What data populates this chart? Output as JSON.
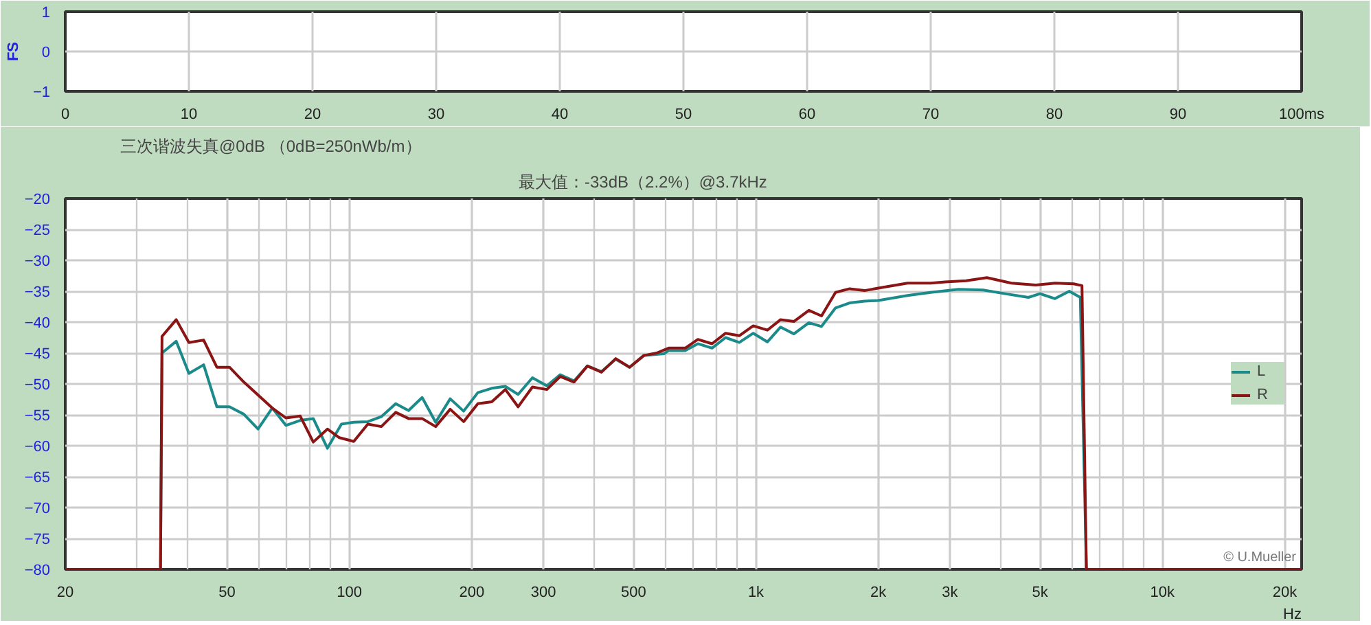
{
  "chart_data": [
    {
      "type": "line",
      "ylabel": "FS",
      "xlim": [
        0,
        100
      ],
      "xticks": [
        0,
        10,
        20,
        30,
        40,
        50,
        60,
        70,
        80,
        90,
        {
          "value": 100,
          "label": "100ms"
        }
      ],
      "ylim": [
        -1,
        1
      ],
      "yticks": [
        -1,
        0,
        1
      ],
      "grid": true
    },
    {
      "type": "line",
      "title": "三次谐波失真@0dB （0dB=250nWb/m）",
      "annotations": [
        "最大值：-33dB（2.2%）@3.7kHz",
        "© U.Mueller"
      ],
      "log": "x",
      "xlim": [
        20,
        22000
      ],
      "xticks": [
        20,
        50,
        100,
        200,
        300,
        500,
        {
          "value": 1000,
          "label": "1k"
        },
        {
          "value": 2000,
          "label": "2k"
        },
        {
          "value": 3000,
          "label": "3k"
        },
        {
          "value": 5000,
          "label": "5k"
        },
        {
          "value": 10000,
          "label": "10k"
        },
        {
          "value": 20000,
          "label": "20k"
        }
      ],
      "xlabel": "Hz",
      "ylim": [
        -80,
        -20
      ],
      "yticks": [
        -80,
        -75,
        -70,
        -65,
        -60,
        -55,
        -50,
        -45,
        -40,
        -35,
        -30,
        -25,
        -20
      ],
      "grid": true,
      "legend": "right",
      "line_style": "solid",
      "series": [
        {
          "name": "L",
          "color": "#1a8a8a",
          "x": [
            20,
            34.3,
            34.6,
            37.5,
            40.3,
            43.8,
            47.2,
            50.7,
            55,
            59.6,
            64.6,
            69.8,
            75.7,
            81.5,
            88.3,
            95.6,
            102.5,
            111,
            119.8,
            130,
            139.8,
            151,
            163,
            177,
            191,
            207,
            224,
            242,
            260,
            282,
            306,
            330,
            357,
            385,
            417,
            452,
            489,
            530,
            595,
            610,
            670,
            720,
            780,
            842,
            910,
            985,
            1067,
            1150,
            1240,
            1350,
            1450,
            1570,
            1700,
            1850,
            2000,
            2360,
            2690,
            3150,
            3620,
            4100,
            4680,
            5000,
            5440,
            5900,
            6280,
            6500,
            22000
          ],
          "values": [
            -80,
            -80,
            -45.0,
            -43.1,
            -48.3,
            -46.9,
            -53.7,
            -53.7,
            -54.9,
            -57.3,
            -53.9,
            -56.7,
            -55.9,
            -55.6,
            -60.4,
            -56.5,
            -56.2,
            -56.1,
            -55.3,
            -53.2,
            -54.3,
            -52.2,
            -56.2,
            -52.4,
            -54.4,
            -51.4,
            -50.7,
            -50.4,
            -51.7,
            -49.0,
            -50.3,
            -48.5,
            -49.5,
            -47.1,
            -48.0,
            -46.0,
            -47.3,
            -45.4,
            -45.1,
            -44.6,
            -44.6,
            -43.5,
            -44.2,
            -42.5,
            -43.3,
            -41.8,
            -43.2,
            -40.8,
            -41.9,
            -40.1,
            -40.7,
            -37.7,
            -36.9,
            -36.6,
            -36.5,
            -35.7,
            -35.2,
            -34.7,
            -34.8,
            -35.4,
            -36.0,
            -35.4,
            -36.2,
            -35.0,
            -36.0,
            -80,
            -80
          ]
        },
        {
          "name": "R",
          "color": "#8b1414",
          "x": [
            20,
            34.3,
            34.6,
            37.5,
            40.3,
            43.8,
            47.2,
            50.7,
            55,
            64.6,
            69.8,
            75.7,
            81.5,
            88.3,
            94.5,
            102.5,
            111,
            119.8,
            130,
            139.8,
            151,
            163,
            177,
            191,
            207,
            224,
            242,
            260,
            282,
            306,
            330,
            357,
            385,
            417,
            452,
            489,
            530,
            570,
            610,
            670,
            720,
            780,
            842,
            910,
            985,
            1067,
            1150,
            1240,
            1350,
            1450,
            1570,
            1700,
            1850,
            2000,
            2360,
            2690,
            2920,
            3290,
            3700,
            4250,
            4880,
            5440,
            6050,
            6340,
            6500,
            22000
          ],
          "values": [
            -80,
            -80,
            -42.3,
            -39.6,
            -43.3,
            -42.9,
            -47.3,
            -47.3,
            -49.7,
            -53.9,
            -55.5,
            -55.2,
            -59.4,
            -57.3,
            -58.7,
            -59.3,
            -56.5,
            -56.9,
            -54.6,
            -55.6,
            -55.6,
            -56.9,
            -54.1,
            -56.1,
            -53.2,
            -52.9,
            -50.9,
            -53.7,
            -50.5,
            -50.9,
            -48.8,
            -49.7,
            -47.1,
            -48.1,
            -45.9,
            -47.3,
            -45.4,
            -45.0,
            -44.2,
            -44.2,
            -42.8,
            -43.5,
            -41.8,
            -42.2,
            -40.6,
            -41.3,
            -39.6,
            -39.9,
            -38.1,
            -39.0,
            -35.2,
            -34.6,
            -34.9,
            -34.5,
            -33.7,
            -33.7,
            -33.5,
            -33.3,
            -32.8,
            -33.7,
            -34.0,
            -33.7,
            -33.8,
            -34.1,
            -80,
            -80
          ]
        }
      ]
    }
  ]
}
